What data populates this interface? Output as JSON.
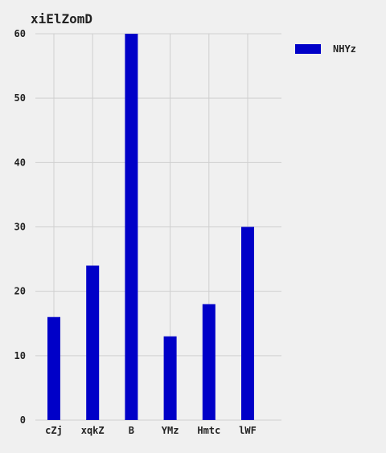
{
  "chart_data": {
    "type": "bar",
    "title": "xiElZomD",
    "xlabel": "",
    "ylabel": "",
    "categories": [
      "cZj",
      "xqkZ",
      "B",
      "YMz",
      "Hmtc",
      "lWF"
    ],
    "series": [
      {
        "name": "NHYz",
        "values": [
          16,
          24,
          60,
          13,
          18,
          30
        ],
        "color": "#0000c8"
      }
    ],
    "ylim": [
      0,
      60
    ],
    "yticks": [
      "0",
      "10",
      "20",
      "30",
      "40",
      "50",
      "60"
    ],
    "grid": true,
    "legend_position": "top-right-outside",
    "background": "#f0f0f0",
    "grid_color": "#cfcfcf"
  }
}
